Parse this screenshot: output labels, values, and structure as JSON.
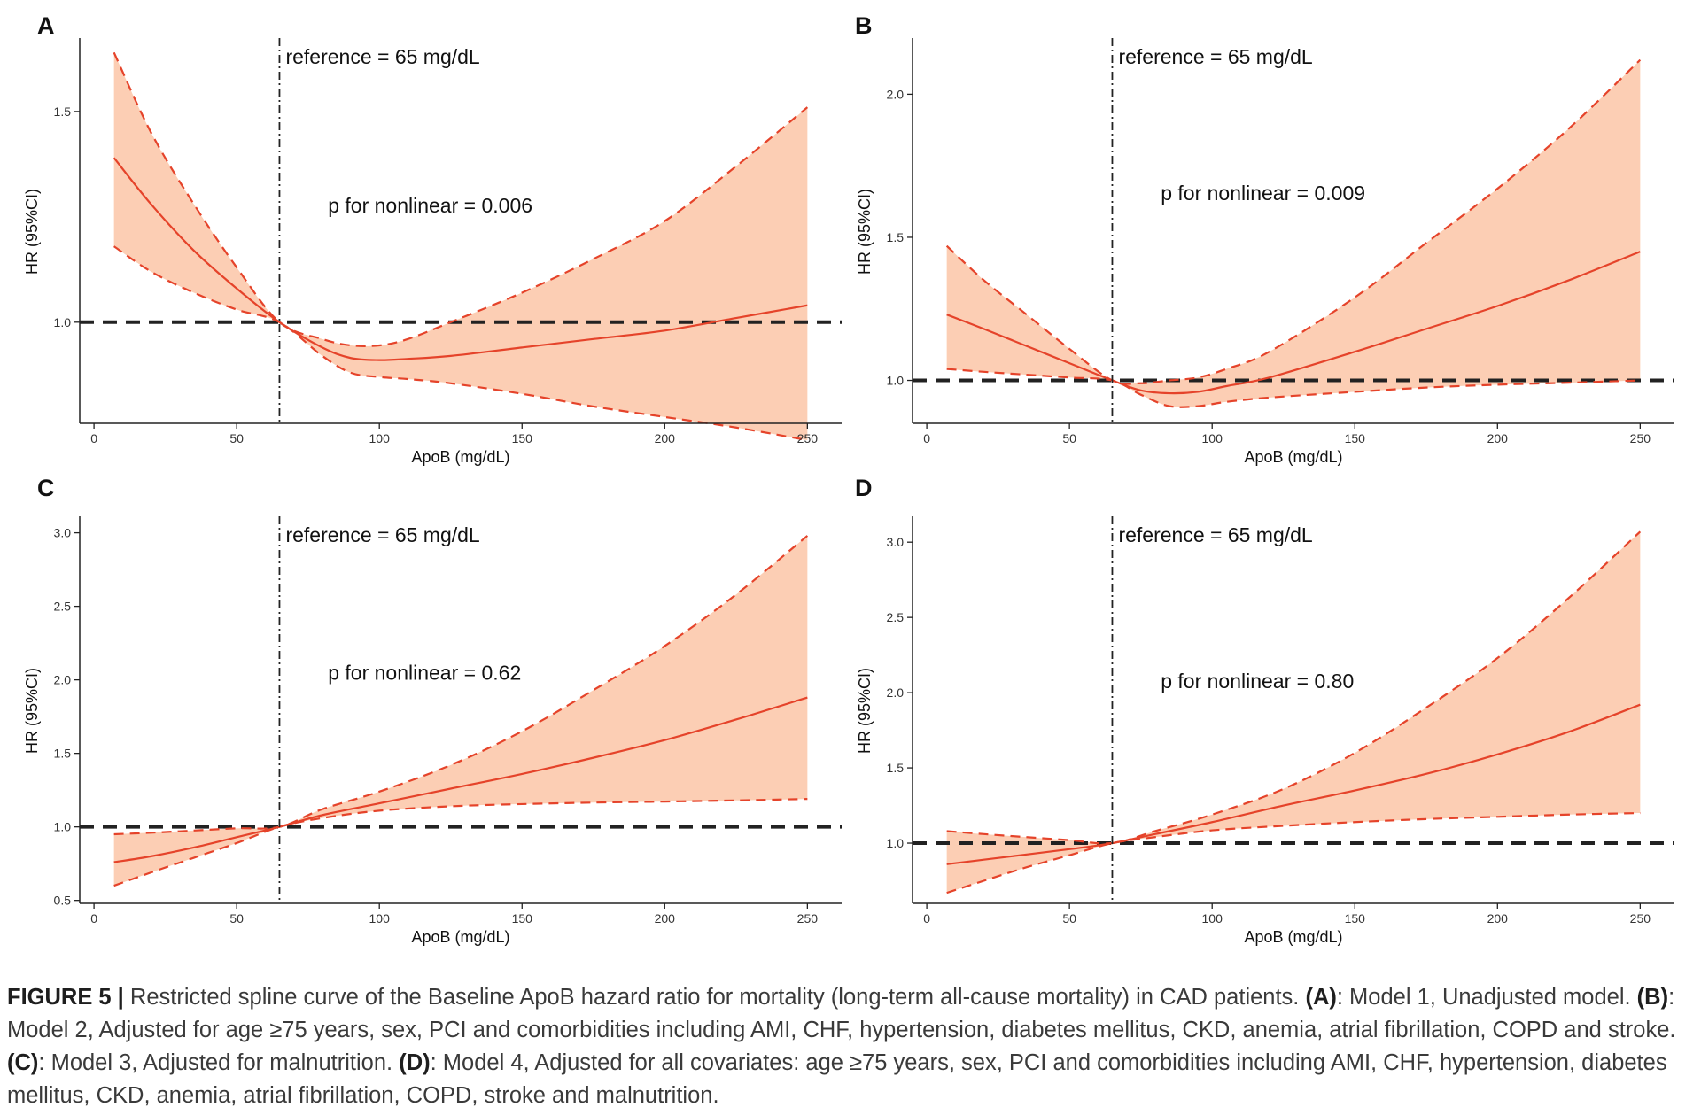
{
  "colors": {
    "line": "#e5432a",
    "band": "#fcceb4",
    "axis": "#222222",
    "refline": "#222222"
  },
  "chart_data": [
    {
      "panel": "A",
      "type": "line",
      "xlabel": "ApoB (mg/dL)",
      "ylabel": "HR (95%CI)",
      "xlim": [
        -5,
        262
      ],
      "ylim": [
        0.76,
        1.67
      ],
      "xticks": [
        0,
        50,
        100,
        150,
        200,
        250
      ],
      "xtick_labels": [
        "0",
        "50",
        "100",
        "150",
        "200",
        "250"
      ],
      "yticks": [
        1.0,
        1.5
      ],
      "ytick_labels": [
        "1.0",
        "1.5"
      ],
      "reference_x": 65,
      "hline_y": 1.0,
      "ref_label": "reference = 65 mg/dL",
      "annotation": "p for nonlinear = 0.006",
      "annotation_xy": [
        82,
        1.26
      ],
      "x": [
        7,
        20,
        35,
        50,
        65,
        80,
        90,
        100,
        110,
        125,
        150,
        175,
        200,
        225,
        250
      ],
      "series": [
        {
          "name": "HR",
          "values": [
            1.39,
            1.28,
            1.17,
            1.08,
            1.0,
            0.94,
            0.915,
            0.91,
            0.913,
            0.92,
            0.94,
            0.96,
            0.98,
            1.01,
            1.04
          ]
        },
        {
          "name": "upper",
          "values": [
            1.64,
            1.45,
            1.28,
            1.13,
            1.0,
            0.96,
            0.945,
            0.945,
            0.96,
            1.0,
            1.07,
            1.15,
            1.24,
            1.37,
            1.51
          ]
        },
        {
          "name": "lower",
          "values": [
            1.18,
            1.12,
            1.07,
            1.03,
            1.0,
            0.92,
            0.88,
            0.87,
            0.865,
            0.855,
            0.83,
            0.8,
            0.775,
            0.75,
            0.72
          ]
        }
      ]
    },
    {
      "panel": "B",
      "type": "line",
      "xlabel": "ApoB (mg/dL)",
      "ylabel": "HR (95%CI)",
      "xlim": [
        -5,
        262
      ],
      "ylim": [
        0.85,
        2.19
      ],
      "xticks": [
        0,
        50,
        100,
        150,
        200,
        250
      ],
      "xtick_labels": [
        "0",
        "50",
        "100",
        "150",
        "200",
        "250"
      ],
      "yticks": [
        1.0,
        1.5,
        2.0
      ],
      "ytick_labels": [
        "1.0",
        "1.5",
        "2.0"
      ],
      "reference_x": 65,
      "hline_y": 1.0,
      "ref_label": "reference = 65 mg/dL",
      "annotation": "p for nonlinear = 0.009",
      "annotation_xy": [
        82,
        1.63
      ],
      "x": [
        7,
        20,
        35,
        50,
        65,
        75,
        85,
        95,
        105,
        120,
        150,
        175,
        200,
        225,
        250
      ],
      "series": [
        {
          "name": "HR",
          "values": [
            1.23,
            1.18,
            1.12,
            1.06,
            1.0,
            0.965,
            0.955,
            0.96,
            0.98,
            1.01,
            1.1,
            1.18,
            1.26,
            1.35,
            1.45
          ]
        },
        {
          "name": "upper",
          "values": [
            1.47,
            1.35,
            1.23,
            1.11,
            1.0,
            0.99,
            1.0,
            1.01,
            1.04,
            1.1,
            1.29,
            1.48,
            1.67,
            1.88,
            2.12
          ]
        },
        {
          "name": "lower",
          "values": [
            1.04,
            1.03,
            1.02,
            1.01,
            1.0,
            0.95,
            0.91,
            0.91,
            0.925,
            0.94,
            0.96,
            0.975,
            0.985,
            0.992,
            1.0
          ]
        }
      ]
    },
    {
      "panel": "C",
      "type": "line",
      "xlabel": "ApoB (mg/dL)",
      "ylabel": "HR (95%CI)",
      "xlim": [
        -5,
        262
      ],
      "ylim": [
        0.48,
        3.1
      ],
      "xticks": [
        0,
        50,
        100,
        150,
        200,
        250
      ],
      "xtick_labels": [
        "0",
        "50",
        "100",
        "150",
        "200",
        "250"
      ],
      "yticks": [
        0.5,
        1.0,
        1.5,
        2.0,
        2.5,
        3.0
      ],
      "ytick_labels": [
        "0.5",
        "1.0",
        "1.5",
        "2.0",
        "2.5",
        "3.0"
      ],
      "reference_x": 65,
      "hline_y": 1.0,
      "ref_label": "reference = 65 mg/dL",
      "annotation": "p for nonlinear = 0.62",
      "annotation_xy": [
        82,
        2.0
      ],
      "x": [
        7,
        20,
        35,
        50,
        65,
        80,
        100,
        125,
        150,
        175,
        200,
        225,
        250
      ],
      "series": [
        {
          "name": "HR",
          "values": [
            0.76,
            0.8,
            0.86,
            0.93,
            1.0,
            1.08,
            1.16,
            1.26,
            1.36,
            1.47,
            1.59,
            1.73,
            1.88
          ]
        },
        {
          "name": "upper",
          "values": [
            0.95,
            0.96,
            0.975,
            0.99,
            1.0,
            1.12,
            1.24,
            1.42,
            1.65,
            1.93,
            2.23,
            2.58,
            2.98
          ]
        },
        {
          "name": "lower",
          "values": [
            0.6,
            0.69,
            0.79,
            0.89,
            1.0,
            1.06,
            1.11,
            1.14,
            1.155,
            1.165,
            1.172,
            1.18,
            1.19
          ]
        }
      ]
    },
    {
      "panel": "D",
      "type": "line",
      "xlabel": "ApoB (mg/dL)",
      "ylabel": "HR (95%CI)",
      "xlim": [
        -5,
        262
      ],
      "ylim": [
        0.6,
        3.16
      ],
      "xticks": [
        0,
        50,
        100,
        150,
        200,
        250
      ],
      "xtick_labels": [
        "0",
        "50",
        "100",
        "150",
        "200",
        "250"
      ],
      "yticks": [
        1.0,
        1.5,
        2.0,
        2.5,
        3.0
      ],
      "ytick_labels": [
        "1.0",
        "1.5",
        "2.0",
        "2.5",
        "3.0"
      ],
      "reference_x": 65,
      "hline_y": 1.0,
      "ref_label": "reference = 65 mg/dL",
      "annotation": "p for nonlinear = 0.80",
      "annotation_xy": [
        82,
        2.03
      ],
      "x": [
        7,
        20,
        35,
        50,
        65,
        80,
        100,
        125,
        150,
        175,
        200,
        225,
        250
      ],
      "series": [
        {
          "name": "HR",
          "values": [
            0.86,
            0.89,
            0.925,
            0.96,
            1.0,
            1.06,
            1.14,
            1.25,
            1.35,
            1.46,
            1.59,
            1.74,
            1.92
          ]
        },
        {
          "name": "upper",
          "values": [
            1.08,
            1.06,
            1.04,
            1.02,
            1.0,
            1.08,
            1.19,
            1.36,
            1.6,
            1.9,
            2.23,
            2.63,
            3.07
          ]
        },
        {
          "name": "lower",
          "values": [
            0.67,
            0.75,
            0.84,
            0.92,
            1.0,
            1.04,
            1.085,
            1.115,
            1.14,
            1.16,
            1.175,
            1.19,
            1.2
          ]
        }
      ]
    }
  ],
  "caption": {
    "label": "FIGURE 5 |",
    "line1": " Restricted spline curve of the Baseline ApoB hazard ratio for mortality (long-term all-cause mortality) in CAD patients. ",
    "a_tag": "(A)",
    "a_text": ": Model 1, Unadjusted model.",
    "b_tag": "(B)",
    "b_text": ": Model 2, Adjusted for age ≥75 years, sex, PCI and comorbidities including AMI, CHF, hypertension, diabetes mellitus, CKD, anemia, atrial fibrillation, COPD and stroke. ",
    "c_tag": "(C)",
    "c_text": ": Model 3, Adjusted for malnutrition. ",
    "d_tag": "(D)",
    "d_text": ": Model 4, Adjusted for all covariates: age ≥75 years, sex, PCI and comorbidities including AMI, CHF, hypertension, diabetes mellitus, CKD, anemia, atrial fibrillation, COPD, stroke and malnutrition."
  }
}
